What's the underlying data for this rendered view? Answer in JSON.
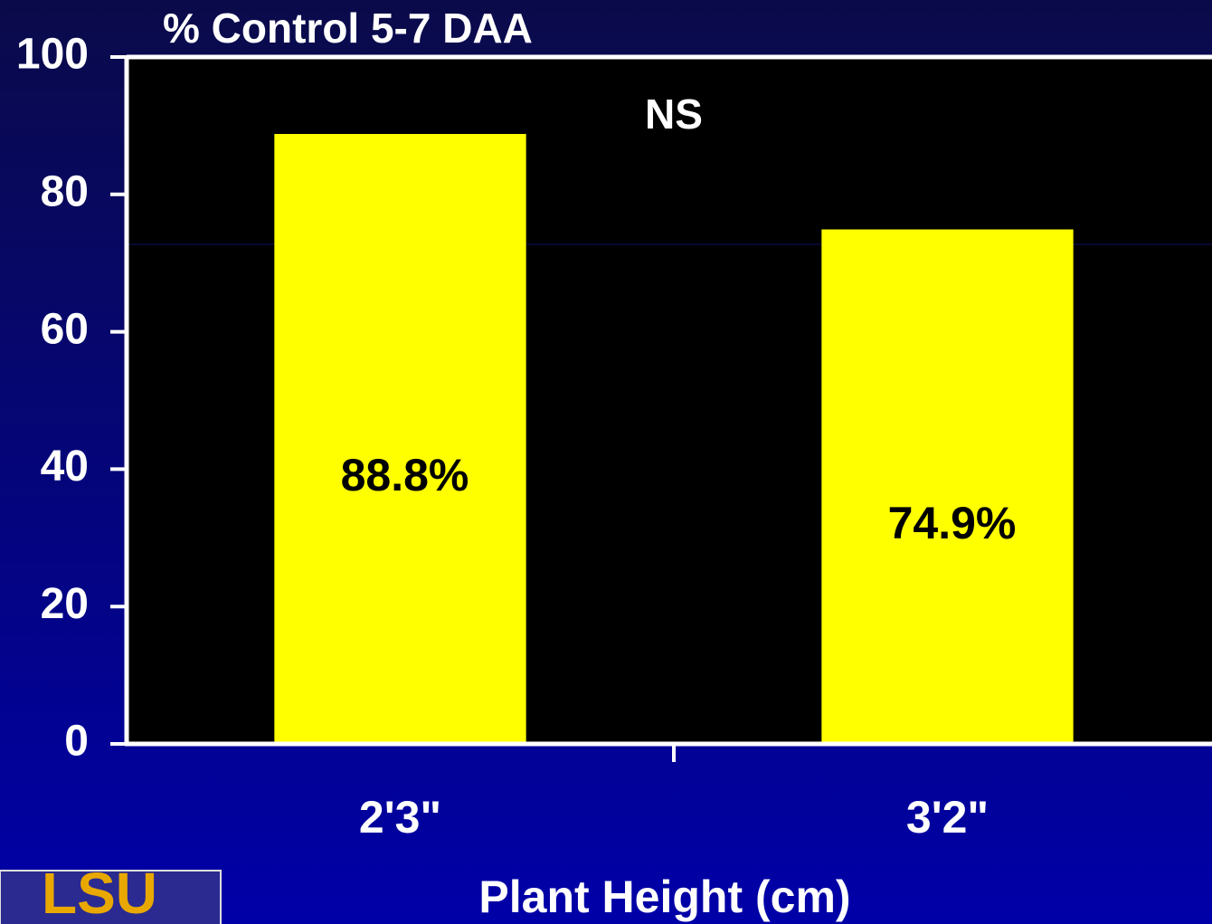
{
  "chart_data": {
    "type": "bar",
    "title": "% Control 5-7 DAA",
    "annotation": "NS",
    "categories": [
      "2'3\"",
      "3'2\""
    ],
    "values": [
      88.8,
      74.9
    ],
    "value_labels": [
      "88.8%",
      "74.9%"
    ],
    "color": "#ffff00",
    "x_label": "Plant Height (cm)",
    "ylim": [
      0,
      100
    ],
    "yticks": [
      0,
      20,
      40,
      60,
      80,
      100
    ],
    "logo": "LSU"
  }
}
